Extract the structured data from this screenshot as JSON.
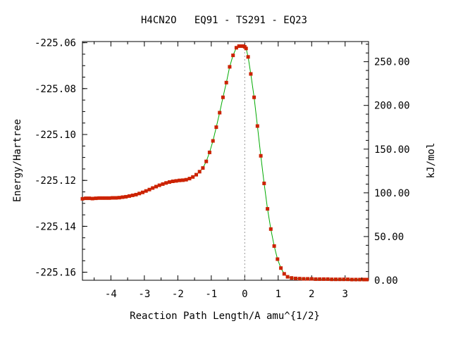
{
  "chart_data": {
    "type": "line",
    "title": "H4CN2O   EQ91 - TS291 - EQ23",
    "xlabel": "Reaction Path Length/A amu^{1/2}",
    "ylabel": "Energy/Hartree",
    "y2label": "kJ/mol",
    "xlim": [
      -4.85,
      3.7
    ],
    "ylim": [
      -225.1635,
      -225.0595
    ],
    "y2lim": [
      0,
      273.06
    ],
    "x_ticks": [
      -4,
      -3,
      -2,
      -1,
      0,
      1,
      2,
      3
    ],
    "x_tick_labels": [
      "-4",
      "-3",
      "-2",
      "-1",
      "0",
      "1",
      "2",
      "3"
    ],
    "y_ticks": [
      -225.06,
      -225.08,
      -225.1,
      -225.12,
      -225.14,
      -225.16
    ],
    "y_tick_labels": [
      "-225.06",
      "-225.08",
      "-225.10",
      "-225.12",
      "-225.14",
      "-225.16"
    ],
    "y2_ticks": [
      250,
      200,
      150,
      100,
      50,
      0
    ],
    "y2_tick_labels": [
      "250.00",
      "200.00",
      "150.00",
      "100.00",
      "50.00",
      "0.00"
    ],
    "ts_marker_x": 0,
    "grid": false,
    "legend": "none",
    "line_color": "#00aa00",
    "point_color": "#cc2200",
    "marker_color": "#999999",
    "series": [
      {
        "x": [
          -4.85,
          -4.75,
          -4.65,
          -4.55,
          -4.45,
          -4.35,
          -4.25,
          -4.15,
          -4.05,
          -3.95,
          -3.85,
          -3.75,
          -3.65,
          -3.55,
          -3.45,
          -3.35,
          -3.25,
          -3.15,
          -3.05,
          -2.95,
          -2.85,
          -2.75,
          -2.65,
          -2.55,
          -2.45,
          -2.35,
          -2.25,
          -2.15,
          -2.05,
          -1.95,
          -1.85,
          -1.75,
          -1.65,
          -1.55,
          -1.45,
          -1.35,
          -1.25,
          -1.15,
          -1.05,
          -0.95,
          -0.85,
          -0.75,
          -0.65,
          -0.55,
          -0.45,
          -0.35,
          -0.25,
          -0.17,
          -0.09,
          -0.04,
          0.0,
          0.04,
          0.1,
          0.18,
          0.28,
          0.38,
          0.48,
          0.58,
          0.68,
          0.78,
          0.88,
          0.98,
          1.08,
          1.18,
          1.28,
          1.4,
          1.52,
          1.64,
          1.76,
          1.88,
          2.0,
          2.12,
          2.24,
          2.36,
          2.48,
          2.6,
          2.72,
          2.84,
          2.96,
          3.08,
          3.2,
          3.32,
          3.44,
          3.56,
          3.65
        ],
        "y": [
          -225.128,
          -225.1278,
          -225.1278,
          -225.1279,
          -225.1278,
          -225.1277,
          -225.1277,
          -225.1277,
          -225.1277,
          -225.1276,
          -225.1276,
          -225.1275,
          -225.1273,
          -225.1271,
          -225.1268,
          -225.1265,
          -225.1262,
          -225.1257,
          -225.1252,
          -225.1246,
          -225.124,
          -225.1233,
          -225.1227,
          -225.1221,
          -225.1216,
          -225.1211,
          -225.1207,
          -225.1204,
          -225.1202,
          -225.12,
          -225.1199,
          -225.1197,
          -225.1192,
          -225.1185,
          -225.1175,
          -225.1162,
          -225.1146,
          -225.1117,
          -225.1078,
          -225.1028,
          -225.0968,
          -225.0905,
          -225.0838,
          -225.0774,
          -225.0705,
          -225.0655,
          -225.0622,
          -225.0615,
          -225.0615,
          -225.0615,
          -225.0618,
          -225.0625,
          -225.0662,
          -225.0736,
          -225.0838,
          -225.0963,
          -225.1093,
          -225.1213,
          -225.1324,
          -225.1412,
          -225.1486,
          -225.1543,
          -225.1582,
          -225.1607,
          -225.162,
          -225.1625,
          -225.1627,
          -225.1628,
          -225.1629,
          -225.1629,
          -225.1629,
          -225.163,
          -225.163,
          -225.163,
          -225.163,
          -225.1631,
          -225.1631,
          -225.1631,
          -225.1631,
          -225.1631,
          -225.1632,
          -225.1632,
          -225.1632,
          -225.1632,
          -225.1632
        ]
      }
    ]
  }
}
